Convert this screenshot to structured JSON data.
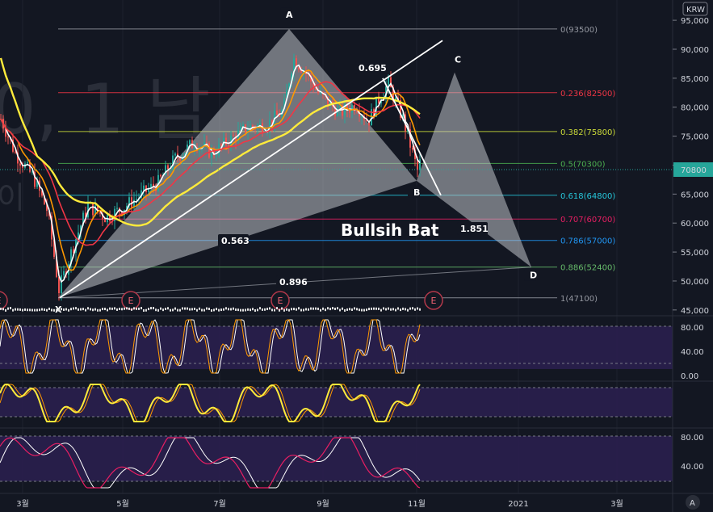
{
  "currency_badge": "KRW",
  "price_tag": "70800",
  "watermark": "0, 1 남",
  "watermark_sub": "이",
  "pattern_title": "Bullsih Bat",
  "corner_button": "A",
  "chart_data": [
    {
      "type": "line",
      "name": "price",
      "yticks": [
        95000,
        90000,
        85000,
        80000,
        75000,
        70000,
        65000,
        60000,
        55000,
        50000,
        45000
      ],
      "ylim": [
        44000,
        98500
      ],
      "xticks": [
        "3월",
        "5월",
        "7월",
        "9월",
        "11월",
        "2021",
        "3월"
      ],
      "pattern_points": [
        {
          "label": "X",
          "price": 47100
        },
        {
          "label": "A",
          "price": 93500
        },
        {
          "label": "B",
          "price": 67300
        },
        {
          "label": "C",
          "price": 86000
        },
        {
          "label": "D",
          "price": 52400
        }
      ],
      "ratios": [
        "0.695",
        "1.851",
        "0.563",
        "0.896"
      ],
      "fib_levels": [
        {
          "label": "0(93500)",
          "price": 93500,
          "color": "#9598a1"
        },
        {
          "label": "0.236(82500)",
          "price": 82500,
          "color": "#f23645"
        },
        {
          "label": "0.382(75800)",
          "price": 75800,
          "color": "#cddc39"
        },
        {
          "label": "0.5(70300)",
          "price": 70300,
          "color": "#4caf50"
        },
        {
          "label": "0.618(64800)",
          "price": 64800,
          "color": "#26c6da"
        },
        {
          "label": "0.707(60700)",
          "price": 60700,
          "color": "#e91e63"
        },
        {
          "label": "0.786(57000)",
          "price": 57000,
          "color": "#2196f3"
        },
        {
          "label": "0.886(52400)",
          "price": 52400,
          "color": "#66bb6a"
        },
        {
          "label": "1(47100)",
          "price": 47100,
          "color": "#9598a1"
        }
      ],
      "earnings_markers": [
        "E",
        "E",
        "E",
        "E"
      ]
    },
    {
      "type": "line",
      "name": "stochastic",
      "yticks": [
        "80.00",
        "40.00",
        "0.00"
      ]
    },
    {
      "type": "line",
      "name": "oscillator-2",
      "yticks": []
    },
    {
      "type": "line",
      "name": "oscillator-3",
      "yticks": [
        "80.00",
        "40.00"
      ]
    }
  ]
}
